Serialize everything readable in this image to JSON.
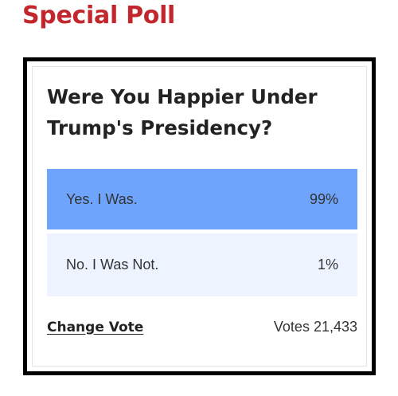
{
  "page": {
    "heading": "Special Poll",
    "heading_color": "#c1272d"
  },
  "poll": {
    "question": "Were You Happier Under Trump's Presidency?",
    "options": [
      {
        "label": "Yes. I Was.",
        "percent_label": "99%",
        "percent": 99,
        "color": "#6ea4fb"
      },
      {
        "label": "No. I Was Not.",
        "percent_label": "1%",
        "percent": 1,
        "color": "#eef4ff"
      }
    ],
    "change_vote_label": "Change Vote",
    "votes_label": "Votes 21,433"
  }
}
